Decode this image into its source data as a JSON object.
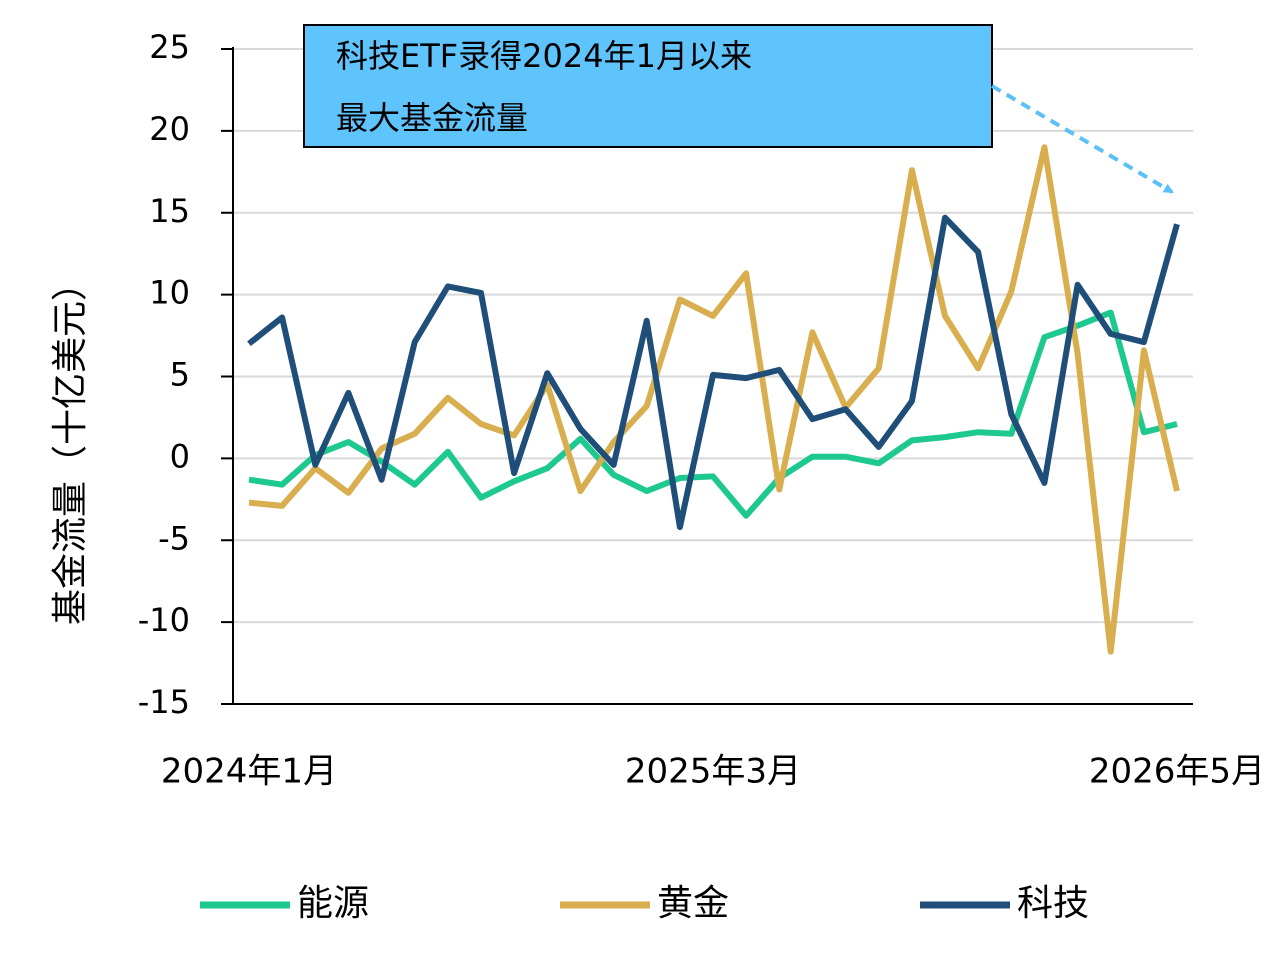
{
  "chart_data": {
    "type": "line",
    "y_label": "基金流量（十亿美元）",
    "annotation": [
      "科技ETF录得2024年1月以来",
      "最大基金流量"
    ],
    "categories": [
      "2024年1月",
      null,
      null,
      null,
      null,
      null,
      null,
      null,
      null,
      null,
      null,
      null,
      null,
      null,
      "2025年3月",
      null,
      null,
      null,
      null,
      null,
      null,
      null,
      null,
      null,
      null,
      null,
      null,
      null,
      "2026年5月"
    ],
    "series": [
      {
        "name": "能源",
        "color": "#1ec98f",
        "values": [
          -1.3,
          -1.6,
          0.2,
          1.0,
          -0.2,
          -1.6,
          0.4,
          -2.4,
          -1.4,
          -0.6,
          1.2,
          -1.0,
          -2.0,
          -1.2,
          -1.1,
          -3.5,
          -1.2,
          0.1,
          0.1,
          -0.3,
          1.1,
          1.3,
          1.6,
          1.5,
          7.4,
          8.1,
          8.9,
          1.6,
          2.1
        ]
      },
      {
        "name": "黄金",
        "color": "#d9ae4f",
        "values": [
          -2.7,
          -2.9,
          -0.6,
          -2.1,
          0.6,
          1.5,
          3.7,
          2.1,
          1.4,
          4.5,
          -2.0,
          1.0,
          3.2,
          9.7,
          8.7,
          11.3,
          -1.9,
          7.7,
          3.1,
          5.5,
          17.6,
          8.7,
          5.5,
          10.2,
          19.0,
          6.4,
          -11.8,
          6.6,
          -2.0
        ]
      },
      {
        "name": "科技",
        "color": "#1f4e79",
        "values": [
          7.0,
          8.6,
          -0.4,
          4.0,
          -1.3,
          7.1,
          10.5,
          10.1,
          -0.9,
          5.2,
          1.8,
          -0.4,
          8.4,
          -4.2,
          5.1,
          4.9,
          5.4,
          2.4,
          3.0,
          0.7,
          3.5,
          14.7,
          12.6,
          2.7,
          -1.5,
          10.6,
          7.6,
          7.1,
          14.3
        ]
      }
    ],
    "ylim": [
      -15,
      25
    ],
    "yticks": [
      -15,
      -10,
      -5,
      0,
      5,
      10,
      15,
      20,
      25
    ],
    "grid": true
  }
}
